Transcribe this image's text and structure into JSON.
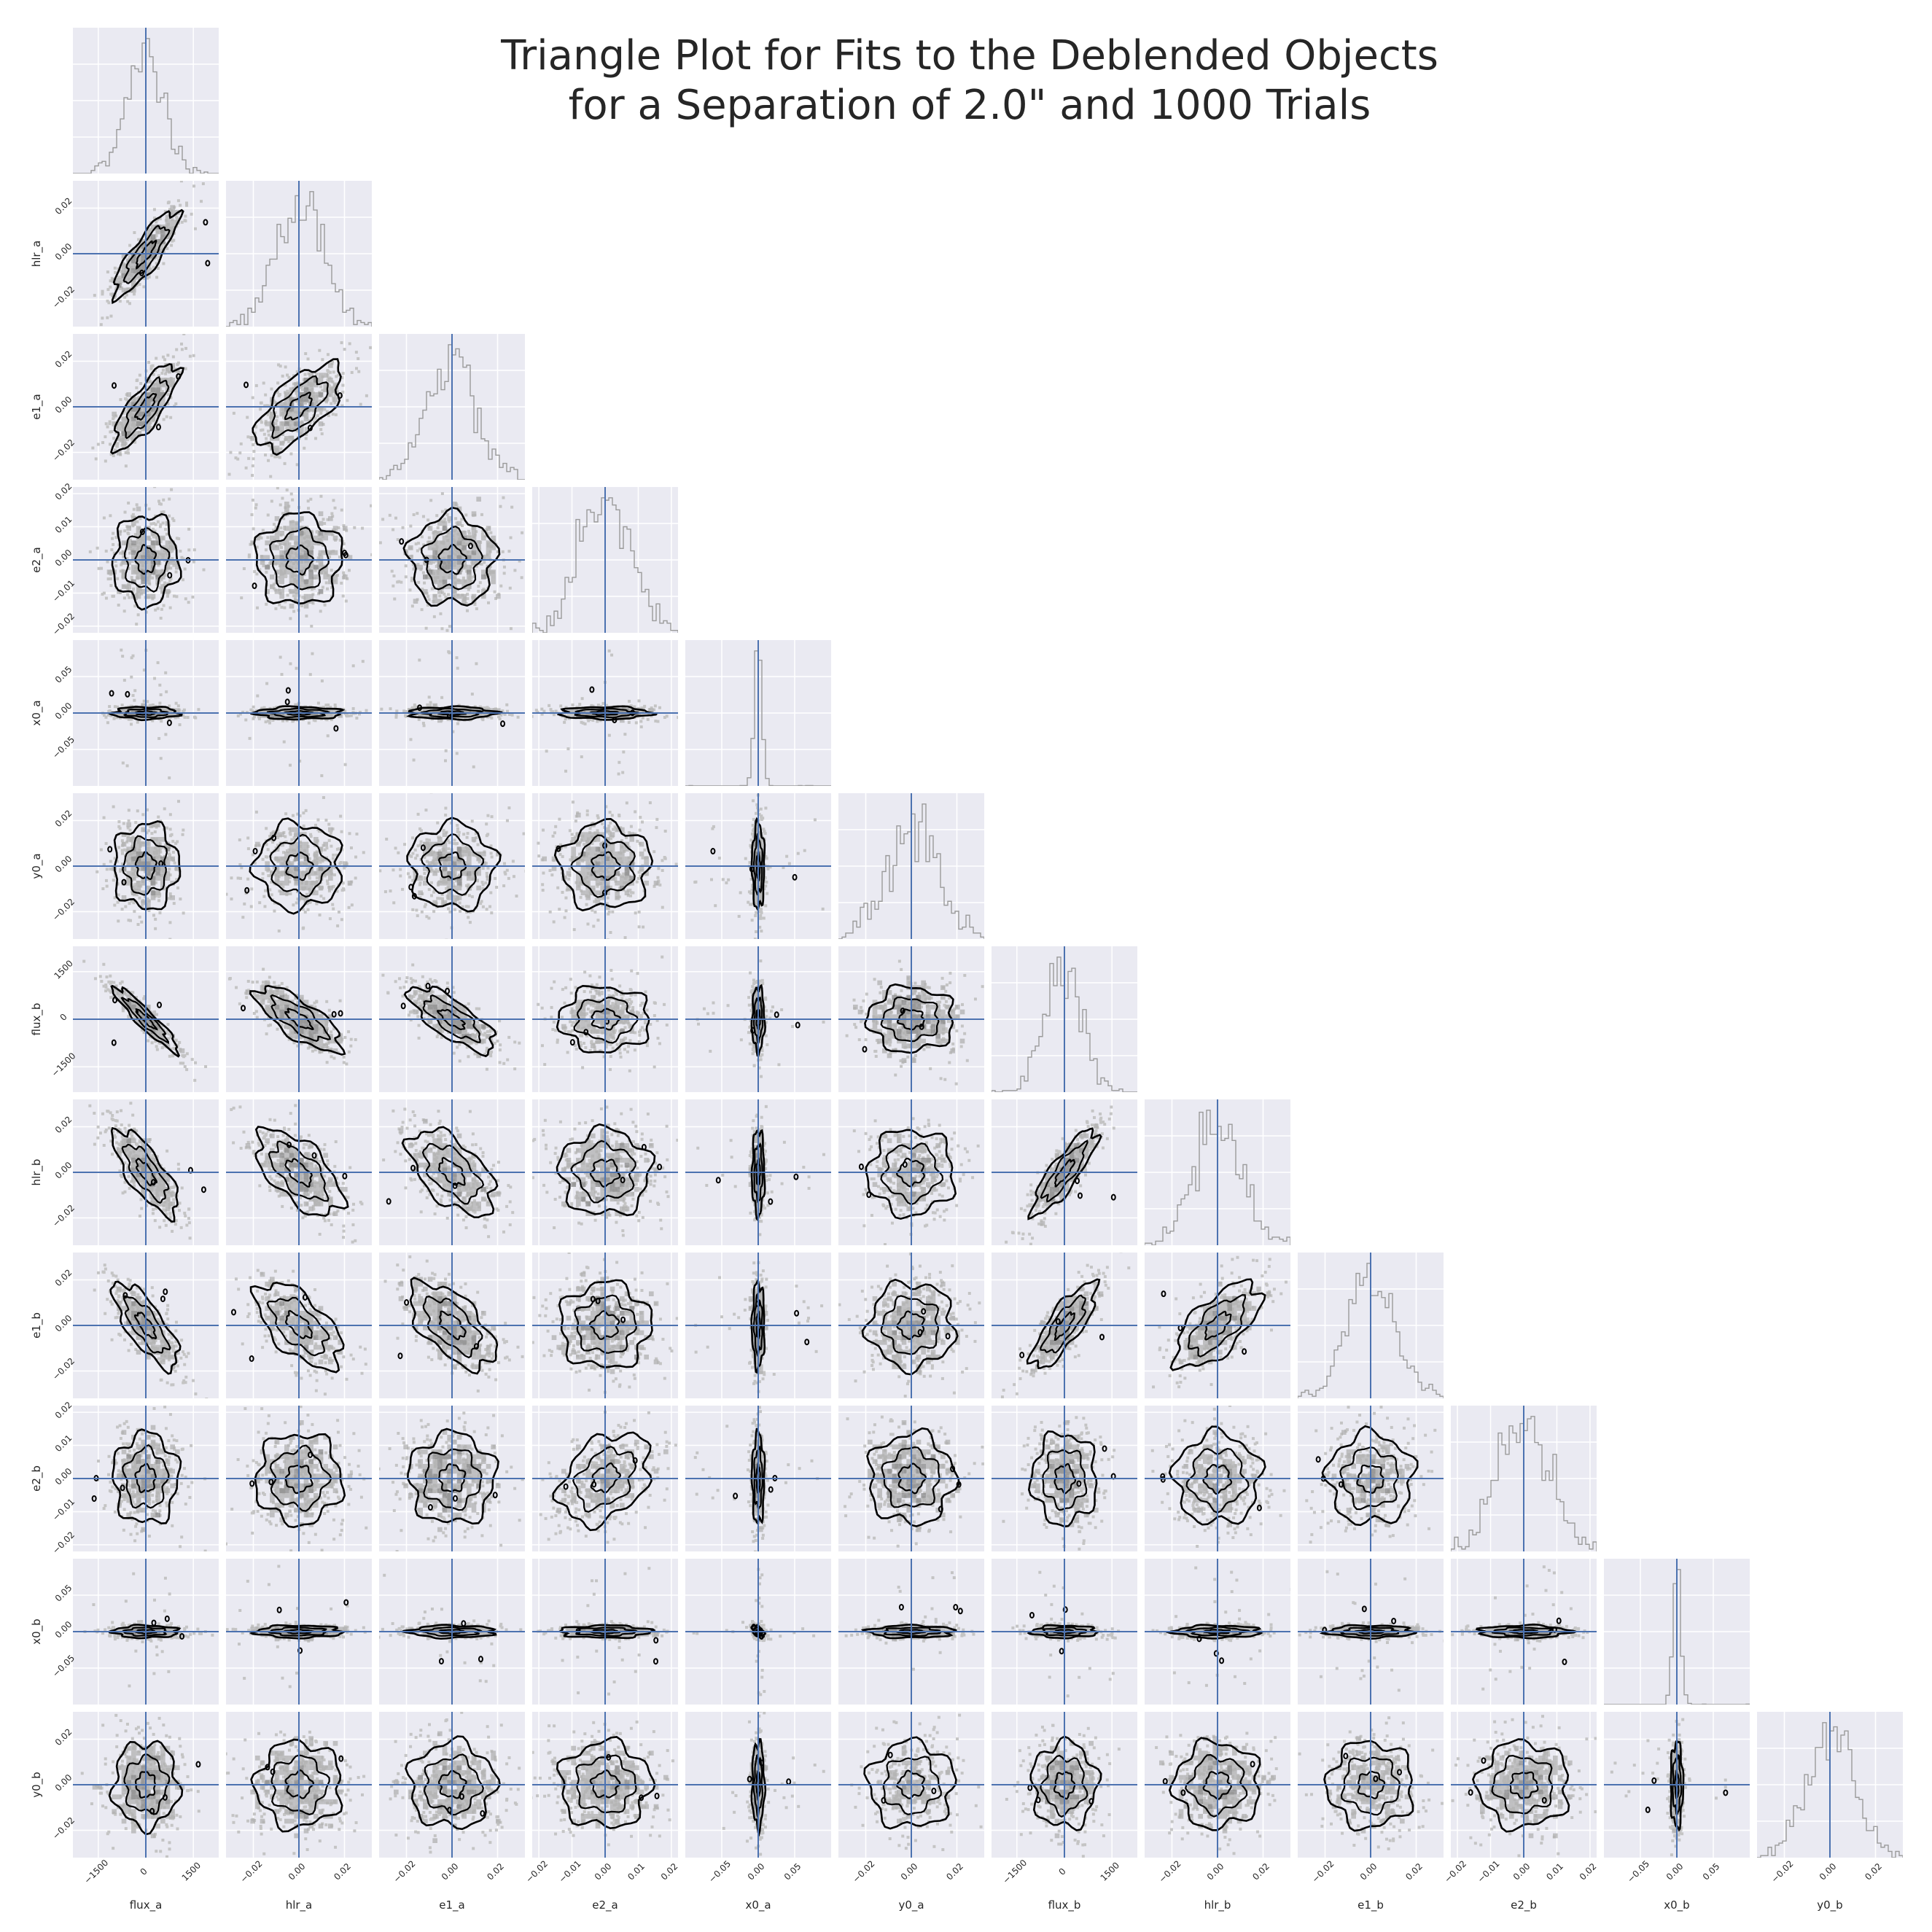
{
  "chart_data": {
    "type": "corner",
    "title_lines": [
      "Triangle Plot for Fits to the Deblended Objects",
      "for a Separation of 2.0\" and 1000 Trials"
    ],
    "n_trials": 1000,
    "parameters": [
      "flux_a",
      "hlr_a",
      "e1_a",
      "e2_a",
      "x0_a",
      "y0_a",
      "flux_b",
      "hlr_b",
      "e1_b",
      "e2_b",
      "x0_b",
      "y0_b"
    ],
    "truth_values": [
      0,
      0,
      0,
      0,
      0,
      0,
      0,
      0,
      0,
      0,
      0,
      0
    ],
    "axis_ranges": [
      [
        -2300,
        2300
      ],
      [
        -0.032,
        0.032
      ],
      [
        -0.032,
        0.032
      ],
      [
        -0.022,
        0.022
      ],
      [
        -0.1,
        0.1
      ],
      [
        -0.032,
        0.032
      ],
      [
        -2300,
        2300
      ],
      [
        -0.032,
        0.032
      ],
      [
        -0.032,
        0.032
      ],
      [
        -0.022,
        0.022
      ],
      [
        -0.1,
        0.1
      ],
      [
        -0.032,
        0.032
      ]
    ],
    "tick_values": [
      [
        -1500,
        0,
        1500
      ],
      [
        -0.02,
        0.0,
        0.02
      ],
      [
        -0.02,
        0.0,
        0.02
      ],
      [
        -0.02,
        -0.01,
        0.0,
        0.01,
        0.02
      ],
      [
        -0.05,
        0.0,
        0.05
      ],
      [
        -0.02,
        0.0,
        0.02
      ],
      [
        -1500,
        0,
        1500
      ],
      [
        -0.02,
        0.0,
        0.02
      ],
      [
        -0.02,
        0.0,
        0.02
      ],
      [
        -0.02,
        -0.01,
        0.0,
        0.01,
        0.02
      ],
      [
        -0.05,
        0.0,
        0.05
      ],
      [
        -0.02,
        0.0,
        0.02
      ]
    ],
    "tick_labels": [
      [
        "−1500",
        "0",
        "1500"
      ],
      [
        "−0.02",
        "0.00",
        "0.02"
      ],
      [
        "−0.02",
        "0.00",
        "0.02"
      ],
      [
        "−0.02",
        "−0.01",
        "0.00",
        "0.01",
        "0.02"
      ],
      [
        "−0.05",
        "0.00",
        "0.05"
      ],
      [
        "−0.02",
        "0.00",
        "0.02"
      ],
      [
        "−1500",
        "0",
        "1500"
      ],
      [
        "−0.02",
        "0.00",
        "0.02"
      ],
      [
        "−0.02",
        "0.00",
        "0.02"
      ],
      [
        "−0.02",
        "−0.01",
        "0.00",
        "0.01",
        "0.02"
      ],
      [
        "−0.05",
        "0.00",
        "0.05"
      ],
      [
        "−0.02",
        "0.00",
        "0.02"
      ]
    ],
    "marginal_std": [
      600,
      0.011,
      0.011,
      0.008,
      0.005,
      0.011,
      600,
      0.011,
      0.011,
      0.008,
      0.005,
      0.011
    ],
    "correlations": [
      {
        "pair": [
          "flux_a",
          "hlr_a"
        ],
        "r": 0.85
      },
      {
        "pair": [
          "flux_a",
          "e1_a"
        ],
        "r": 0.8
      },
      {
        "pair": [
          "hlr_a",
          "e1_a"
        ],
        "r": 0.65
      },
      {
        "pair": [
          "flux_a",
          "flux_b"
        ],
        "r": -0.93
      },
      {
        "pair": [
          "hlr_a",
          "flux_b"
        ],
        "r": -0.75
      },
      {
        "pair": [
          "e1_a",
          "flux_b"
        ],
        "r": -0.75
      },
      {
        "pair": [
          "flux_a",
          "hlr_b"
        ],
        "r": -0.75
      },
      {
        "pair": [
          "hlr_a",
          "hlr_b"
        ],
        "r": -0.6
      },
      {
        "pair": [
          "e1_a",
          "hlr_b"
        ],
        "r": -0.55
      },
      {
        "pair": [
          "flux_b",
          "hlr_b"
        ],
        "r": 0.85
      },
      {
        "pair": [
          "flux_a",
          "e1_b"
        ],
        "r": -0.75
      },
      {
        "pair": [
          "hlr_a",
          "e1_b"
        ],
        "r": -0.6
      },
      {
        "pair": [
          "e1_a",
          "e1_b"
        ],
        "r": -0.6
      },
      {
        "pair": [
          "flux_b",
          "e1_b"
        ],
        "r": 0.8
      },
      {
        "pair": [
          "hlr_b",
          "e1_b"
        ],
        "r": 0.65
      },
      {
        "pair": [
          "e2_a",
          "e2_b"
        ],
        "r": 0.35
      },
      {
        "pair": [
          "x0_a",
          "x0_b"
        ],
        "r": -0.5
      }
    ],
    "panel_background": "#eaeaf2",
    "grid": true,
    "grid_color": "#ffffff",
    "truth_line_color": "#4c72b0",
    "histogram_color": "#9a9a9a",
    "contour_color": "#000000",
    "scatter_color": "#c4c4c4"
  }
}
